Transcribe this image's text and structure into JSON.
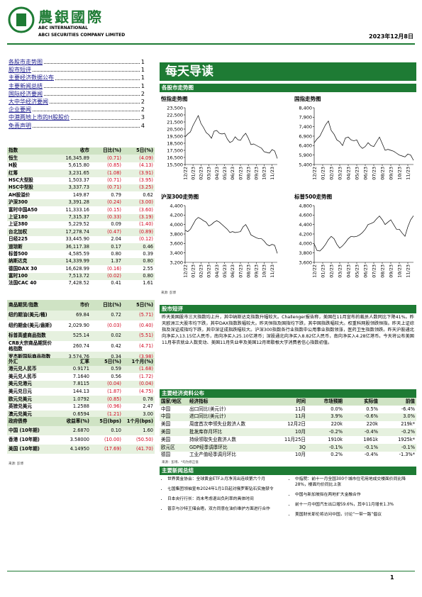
{
  "header": {
    "logo_cn": "農銀國際",
    "logo_en1": "ABC INTERNATIONAL",
    "logo_en2": "ABCI SECURITIES COMPANY LIMITED",
    "date": "2023年12月8日"
  },
  "toc": [
    {
      "label": "各股市走势图",
      "page": 1
    },
    {
      "label": "股市短评",
      "page": 1
    },
    {
      "label": "主要经济数据公布",
      "page": 1
    },
    {
      "label": "主要新闻总结",
      "page": 1
    },
    {
      "label": "国际经济要闻",
      "page": 2
    },
    {
      "label": "大中华经济要闻",
      "page": 2
    },
    {
      "label": "企业要闻",
      "page": 2
    },
    {
      "label": "中港两地上市的H股股价",
      "page": 3
    },
    {
      "label": "免责声明",
      "page": 4
    }
  ],
  "title": "每天导读",
  "tables": [
    {
      "columns": [
        "指数",
        "收市",
        "日比(%)",
        "5日(%)"
      ],
      "rows": [
        [
          "恒生",
          "16,345.89",
          "(0.71)",
          "(4.09)"
        ],
        [
          "H股",
          "5,615.80",
          "(0.85)",
          "(4.13)"
        ],
        [
          "红筹",
          "3,231.65",
          "(1.08)",
          "(3.91)"
        ],
        [
          "HSC大型股",
          "1,503.37",
          "(0.71)",
          "(3.95)"
        ],
        [
          "HSC中型股",
          "3,337.73",
          "(0.71)",
          "(3.25)"
        ],
        [
          "AH股溢价",
          "149.87",
          "0.79",
          "0.62"
        ],
        [
          "沪深300",
          "3,391.28",
          "(0.24)",
          "(3.00)"
        ],
        [
          "富时中国A50",
          "11,333.16",
          "(0.15)",
          "(3.60)"
        ],
        [
          "上证180",
          "7,315.37",
          "(0.33)",
          "(3.19)"
        ],
        [
          "上证380",
          "5,229.52",
          "0.09",
          "(1.40)"
        ],
        [
          "台北加权",
          "17,278.74",
          "(0.47)",
          "(0.89)"
        ],
        [
          "日经225",
          "33,445.90",
          "2.04",
          "(0.12)"
        ],
        [
          "道琼斯",
          "36,117.38",
          "0.17",
          "0.46"
        ],
        [
          "标普500",
          "4,585.59",
          "0.80",
          "0.39"
        ],
        [
          "纳斯达克",
          "14,339.99",
          "1.37",
          "0.80"
        ],
        [
          "德国DAX 30",
          "16,628.99",
          "(0.16)",
          "2.55"
        ],
        [
          "富时100",
          "7,513.72",
          "(0.02)",
          "0.80"
        ],
        [
          "法国CAC 40",
          "7,428.52",
          "0.41",
          "1.61"
        ]
      ]
    },
    {
      "columns": [
        "商品期货/指数",
        "市价",
        "日比(%)",
        "5日(%)"
      ],
      "rows": [
        [
          "纽约期油(美元/桶)",
          "69.84",
          "0.72",
          "(5.71)"
        ],
        [
          "纽约期金(美元/盎斯)",
          "2,029.90",
          "(0.03)",
          "(0.40)"
        ],
        [
          "标普高盛商品指数",
          "525.14",
          "0.02",
          "(5.51)"
        ],
        [
          "CRB大宗商品期货价格指数",
          "260.74",
          "0.42",
          "(4.71)"
        ],
        [
          "罗杰斯国际商品指数",
          "3,574.76",
          "0.34",
          "(3.98)"
        ]
      ]
    },
    {
      "columns": [
        "外汇",
        "汇率",
        "5日(%)",
        "1个月(%)"
      ],
      "rows": [
        [
          "港元兑人民币",
          "0.9171",
          "0.59",
          "(1.68)"
        ],
        [
          "美元兑人民币",
          "7.1640",
          "0.56",
          "(1.72)"
        ],
        [
          "美元兑港元",
          "7.8115",
          "(0.04)",
          "(0.04)"
        ],
        [
          "美元兑日元",
          "144.13",
          "(1.87)",
          "(4.75)"
        ],
        [
          "欧元兑美元",
          "1.0792",
          "(0.85)",
          "0.78"
        ],
        [
          "英镑兑美元",
          "1.2588",
          "(0.96)",
          "2.47"
        ],
        [
          "澳元兑美元",
          "0.6594",
          "(1.21)",
          "3.00"
        ]
      ]
    },
    {
      "columns": [
        "政府债券",
        "收益率(%)",
        "5日(bps)",
        "1个月(bps)"
      ],
      "rows": [
        [
          "中国 (10年期)",
          "2.6870",
          "0.10",
          "1.60"
        ],
        [
          "香港 (10年期)",
          "3.58000",
          "(10.00)",
          "(50.50)"
        ],
        [
          "美国 (10年期)",
          "4.14950",
          "(17.69)",
          "(41.70)"
        ]
      ]
    }
  ],
  "tables_source": "来源: 彭博",
  "market_charts": {
    "heading": "各股市走势图",
    "source": "来源: 彭博"
  },
  "chart_data": [
    {
      "type": "line",
      "title": "恒指走势图",
      "color": "#000000",
      "categories": [
        "12/22",
        null,
        null,
        "01/23",
        null,
        null,
        "02/23",
        null,
        null,
        "03/23",
        null,
        null,
        "04/23",
        null,
        null,
        "05/23",
        null,
        null,
        "06/23",
        null,
        null,
        "07/23",
        null,
        null,
        "08/23",
        null,
        null,
        "09/23",
        null,
        null,
        "10/23",
        null,
        null,
        "11/23",
        null,
        null
      ],
      "values": [
        19400,
        19800,
        20100,
        21000,
        21700,
        22400,
        21300,
        20700,
        20000,
        19700,
        19200,
        20200,
        20300,
        19900,
        19800,
        19900,
        19100,
        18600,
        18800,
        19400,
        19000,
        18900,
        19500,
        19900,
        19200,
        18300,
        18400,
        18200,
        18000,
        17800,
        17300,
        17200,
        17100,
        17600,
        17400,
        16350
      ],
      "ylim": [
        15500,
        23500
      ],
      "yticks": [
        {
          "value": 15500,
          "label": "15,500"
        },
        {
          "value": 16500,
          "label": "16,500"
        },
        {
          "value": 17500,
          "label": "17,500"
        },
        {
          "value": 18500,
          "label": "18,500"
        },
        {
          "value": 19500,
          "label": "19,500"
        },
        {
          "value": 20500,
          "label": "20,500"
        },
        {
          "value": 21500,
          "label": "21,500"
        },
        {
          "value": 22500,
          "label": "22,500"
        },
        {
          "value": 23500,
          "label": "23,500"
        }
      ]
    },
    {
      "type": "line",
      "title": "国指走势图",
      "color": "#000000",
      "categories": [
        "12/22",
        null,
        null,
        "01/23",
        null,
        null,
        "02/23",
        null,
        null,
        "03/23",
        null,
        null,
        "04/23",
        null,
        null,
        "05/23",
        null,
        null,
        "06/23",
        null,
        null,
        "07/23",
        null,
        null,
        "08/23",
        null,
        null,
        "09/23",
        null,
        null,
        "10/23",
        null,
        null,
        "11/23",
        null,
        null
      ],
      "values": [
        6550,
        6750,
        6900,
        7200,
        7500,
        7700,
        7200,
        7000,
        6700,
        6600,
        6400,
        6800,
        6850,
        6700,
        6650,
        6700,
        6400,
        6250,
        6350,
        6550,
        6400,
        6350,
        6600,
        6850,
        6500,
        6150,
        6200,
        6150,
        6100,
        6000,
        5900,
        5850,
        5800,
        5950,
        5900,
        5620
      ],
      "ylim": [
        5400,
        8400
      ],
      "yticks": [
        {
          "value": 5400,
          "label": "5,400"
        },
        {
          "value": 5900,
          "label": "5,900"
        },
        {
          "value": 6400,
          "label": "6,400"
        },
        {
          "value": 6900,
          "label": "6,900"
        },
        {
          "value": 7400,
          "label": "7,400"
        },
        {
          "value": 7900,
          "label": "7,900"
        },
        {
          "value": 8400,
          "label": "8,400"
        }
      ]
    },
    {
      "type": "line",
      "title": "沪深300走势图",
      "color": "#000000",
      "categories": [
        "12/22",
        null,
        null,
        "01/23",
        null,
        null,
        "02/23",
        null,
        null,
        "03/23",
        null,
        null,
        "04/23",
        null,
        null,
        "05/23",
        null,
        null,
        "06/23",
        null,
        null,
        "07/23",
        null,
        null,
        "08/23",
        null,
        null,
        "09/23",
        null,
        null,
        "10/23",
        null,
        null,
        "11/23",
        null,
        null
      ],
      "values": [
        3880,
        3850,
        3900,
        4000,
        4100,
        4150,
        4120,
        4080,
        4050,
        3970,
        4000,
        4050,
        4080,
        4050,
        4000,
        3950,
        3900,
        3830,
        3850,
        3830,
        3840,
        3850,
        3950,
        4000,
        3900,
        3780,
        3750,
        3720,
        3700,
        3700,
        3650,
        3580,
        3550,
        3580,
        3560,
        3390
      ],
      "ylim": [
        3200,
        4400
      ],
      "yticks": [
        {
          "value": 3200,
          "label": "3,200"
        },
        {
          "value": 3400,
          "label": "3,400"
        },
        {
          "value": 3600,
          "label": "3,600"
        },
        {
          "value": 3800,
          "label": "3,800"
        },
        {
          "value": 4000,
          "label": "4,000"
        },
        {
          "value": 4200,
          "label": "4,200"
        },
        {
          "value": 4400,
          "label": "4,400"
        }
      ]
    },
    {
      "type": "line",
      "title": "标普500走势图",
      "color": "#000000",
      "categories": [
        "12/22",
        null,
        null,
        "01/23",
        null,
        null,
        "02/23",
        null,
        null,
        "03/23",
        null,
        null,
        "04/23",
        null,
        null,
        "05/23",
        null,
        null,
        "06/23",
        null,
        null,
        "07/23",
        null,
        null,
        "08/23",
        null,
        null,
        "09/23",
        null,
        null,
        "10/23",
        null,
        null,
        "11/23",
        null,
        null
      ],
      "values": [
        3990,
        3850,
        3840,
        3900,
        3980,
        4080,
        4150,
        4100,
        3980,
        3900,
        3950,
        4020,
        4100,
        4150,
        4140,
        4150,
        4180,
        4230,
        4300,
        4400,
        4420,
        4450,
        4520,
        4580,
        4500,
        4400,
        4450,
        4500,
        4400,
        4300,
        4300,
        4220,
        4150,
        4350,
        4500,
        4585
      ],
      "ylim": [
        3600,
        4800
      ],
      "yticks": [
        {
          "value": 3600,
          "label": "3,600"
        },
        {
          "value": 3800,
          "label": "3,800"
        },
        {
          "value": 4000,
          "label": "4,000"
        },
        {
          "value": 4200,
          "label": "4,200"
        },
        {
          "value": 4400,
          "label": "4,400"
        },
        {
          "value": 4600,
          "label": "4,600"
        },
        {
          "value": 4800,
          "label": "4,800"
        }
      ]
    }
  ],
  "commentary": {
    "heading": "股市短评",
    "text": "昨天美国股市三大指数均上升，其中纳斯达克指数升幅较大。Challenger报告称，美国在11月宣布的裁员人数同比下降41%。昨天欧洲三大股市均下跌，其中DAX指数跌幅较大。昨天恒指及国指均下跌，其中国指跌幅较大。权重科网股领跌恒指。昨天上证综指及深证成指均下跌，其中深证成指跌幅较大。沪深300指数各行业指数中公用事业指数领涨，医药卫生指数领跌。昨天沪股通北向净买入13.15亿人民币，南向净买入25.10亿港币；深股通北向净买入8.82亿人民币，南向净买入4.28亿港币。今天将公布美国11月非农就业人数变动、美国11月失业率及美国12月密歇根大学消费者信心指数初值。"
  },
  "economic_data": {
    "heading": "主要经济资料公布",
    "columns": [
      "国家/地区",
      "经济指标",
      "时间",
      "市场预期",
      "实际值",
      "前值"
    ],
    "rows": [
      [
        "中国",
        "出口同比(美元计)",
        "11月",
        "0.0%",
        "0.5%",
        "-6.4%"
      ],
      [
        "中国",
        "进口同比(美元计)",
        "11月",
        "3.9%",
        "-0.6%",
        "3.0%"
      ],
      [
        "美国",
        "周度首次申领失业救济人数",
        "12月2日",
        "220k",
        "220k",
        "219k*"
      ],
      [
        "美国",
        "批发库存月环比",
        "10月",
        "-0.2%",
        "-0.4%",
        "-0.2%"
      ],
      [
        "美国",
        "持续领取失业救济人数",
        "11月25日",
        "1910k",
        "1861k",
        "1925k*"
      ],
      [
        "欧元区",
        "GDP经季调季环比",
        "3Q",
        "-0.1%",
        "-0.1%",
        "-0.1%"
      ],
      [
        "德国",
        "工业产值经季调月环比",
        "10月",
        "0.2%",
        "-0.4%",
        "-1.3%*"
      ]
    ],
    "source": "来源：彭博、*均为修正值"
  },
  "news": {
    "heading": "主要新闻总结",
    "left": [
      "世界黄金协会：全球黄金ETF上月净流出连续第六个月",
      "七国集团领袖宣布2024年1月1日起对俄罗斯钻石实施禁令",
      "日本央行行长：尚未考虑退出负利率的具体时间",
      "普京与沙特王储会晤，双方同意在油价维护方面进行合作"
    ],
    "right": [
      "中指院：前十一月全国300个城市住宅用地成交楼面价同比降28%，楼面均价同比上涨",
      "中国与新加坡拟在两地扩大金融合作",
      "前十一月中国汽车出口增59.6%，其中11月增长1.3%",
      "美国财长耶伦将访问中国，讨论“一带一路”倡议"
    ]
  },
  "page_number": 1
}
